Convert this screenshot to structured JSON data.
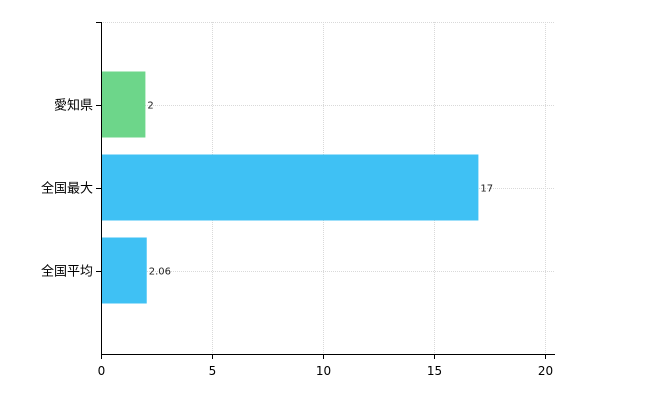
{
  "chart_data": {
    "type": "bar",
    "orientation": "horizontal",
    "categories": [
      "愛知県",
      "全国最大",
      "全国平均"
    ],
    "values": [
      2,
      17,
      2.06
    ],
    "value_labels": [
      "2",
      "17",
      "2.06"
    ],
    "bar_colors": [
      "#6dd68a",
      "#3fc1f4",
      "#3fc1f4"
    ],
    "xlim": [
      0,
      20
    ],
    "xticks": [
      "0",
      "5",
      "10",
      "15",
      "20"
    ],
    "title": "",
    "xlabel": "",
    "ylabel": "",
    "grid": true,
    "legend": "none"
  }
}
